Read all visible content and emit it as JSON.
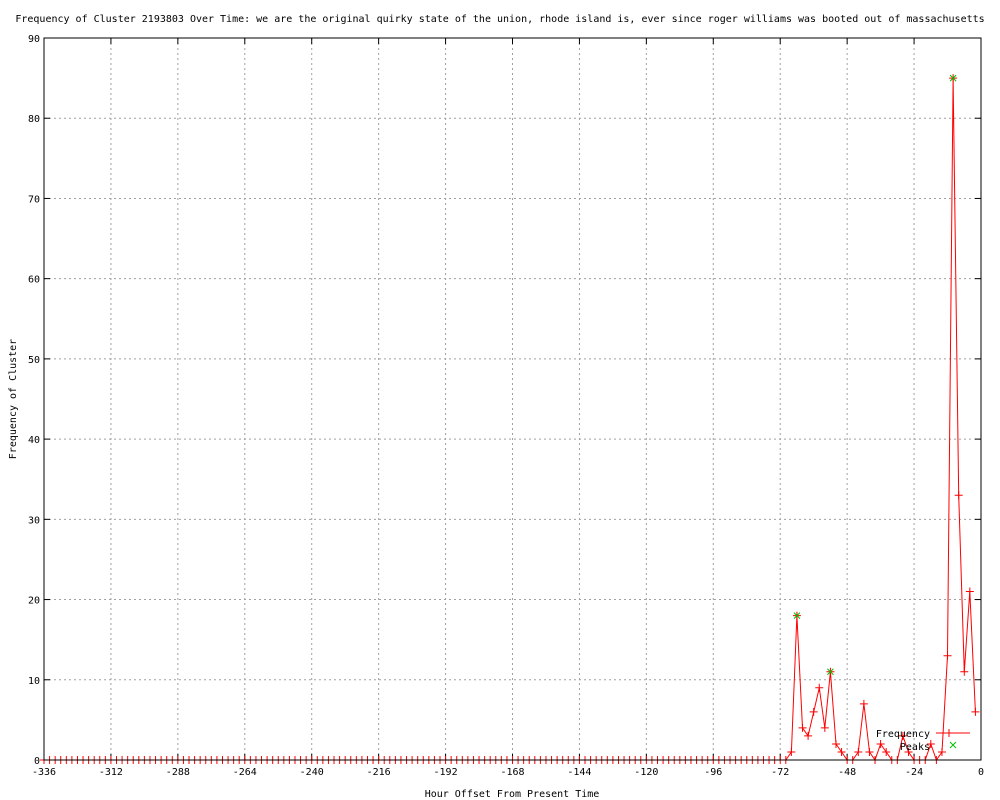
{
  "chart_data": {
    "type": "line",
    "title": "Frequency of Cluster 2193803 Over Time: we are the original quirky state of the union, rhode island is, ever since roger williams was booted out of massachusetts",
    "xlabel": "Hour Offset From Present Time",
    "ylabel": "Frequency of Cluster",
    "xlim": [
      -336,
      0
    ],
    "ylim": [
      0,
      90
    ],
    "xticks": [
      -336,
      -312,
      -288,
      -264,
      -240,
      -216,
      -192,
      -168,
      -144,
      -120,
      -96,
      -72,
      -48,
      -24,
      0
    ],
    "yticks": [
      0,
      10,
      20,
      30,
      40,
      50,
      60,
      70,
      80,
      90
    ],
    "grid": true,
    "legend_position": "bottom-right",
    "series": [
      {
        "name": "Frequency",
        "color": "#ff0000",
        "marker": "plus",
        "x": [
          -336,
          -334,
          -332,
          -330,
          -328,
          -326,
          -324,
          -322,
          -320,
          -318,
          -316,
          -314,
          -312,
          -310,
          -308,
          -306,
          -304,
          -302,
          -300,
          -298,
          -296,
          -294,
          -292,
          -290,
          -288,
          -286,
          -284,
          -282,
          -280,
          -278,
          -276,
          -274,
          -272,
          -270,
          -268,
          -266,
          -264,
          -262,
          -260,
          -258,
          -256,
          -254,
          -252,
          -250,
          -248,
          -246,
          -244,
          -242,
          -240,
          -238,
          -236,
          -234,
          -232,
          -230,
          -228,
          -226,
          -224,
          -222,
          -220,
          -218,
          -216,
          -214,
          -212,
          -210,
          -208,
          -206,
          -204,
          -202,
          -200,
          -198,
          -196,
          -194,
          -192,
          -190,
          -188,
          -186,
          -184,
          -182,
          -180,
          -178,
          -176,
          -174,
          -172,
          -170,
          -168,
          -166,
          -164,
          -162,
          -160,
          -158,
          -156,
          -154,
          -152,
          -150,
          -148,
          -146,
          -144,
          -142,
          -140,
          -138,
          -136,
          -134,
          -132,
          -130,
          -128,
          -126,
          -124,
          -122,
          -120,
          -118,
          -116,
          -114,
          -112,
          -110,
          -108,
          -106,
          -104,
          -102,
          -100,
          -98,
          -96,
          -94,
          -92,
          -90,
          -88,
          -86,
          -84,
          -82,
          -80,
          -78,
          -76,
          -74,
          -72,
          -70,
          -68,
          -66,
          -64,
          -62,
          -60,
          -58,
          -56,
          -54,
          -52,
          -50,
          -48,
          -46,
          -44,
          -42,
          -40,
          -38,
          -36,
          -34,
          -32,
          -30,
          -28,
          -26,
          -24,
          -22,
          -20,
          -18,
          -16,
          -14,
          -12,
          -10,
          -8,
          -6,
          -4,
          -2
        ],
        "y": [
          0,
          0,
          0,
          0,
          0,
          0,
          0,
          0,
          0,
          0,
          0,
          0,
          0,
          0,
          0,
          0,
          0,
          0,
          0,
          0,
          0,
          0,
          0,
          0,
          0,
          0,
          0,
          0,
          0,
          0,
          0,
          0,
          0,
          0,
          0,
          0,
          0,
          0,
          0,
          0,
          0,
          0,
          0,
          0,
          0,
          0,
          0,
          0,
          0,
          0,
          0,
          0,
          0,
          0,
          0,
          0,
          0,
          0,
          0,
          0,
          0,
          0,
          0,
          0,
          0,
          0,
          0,
          0,
          0,
          0,
          0,
          0,
          0,
          0,
          0,
          0,
          0,
          0,
          0,
          0,
          0,
          0,
          0,
          0,
          0,
          0,
          0,
          0,
          0,
          0,
          0,
          0,
          0,
          0,
          0,
          0,
          0,
          0,
          0,
          0,
          0,
          0,
          0,
          0,
          0,
          0,
          0,
          0,
          0,
          0,
          0,
          0,
          0,
          0,
          0,
          0,
          0,
          0,
          0,
          0,
          0,
          0,
          0,
          0,
          0,
          0,
          0,
          0,
          0,
          0,
          0,
          0,
          0,
          0,
          1,
          18,
          4,
          3,
          6,
          9,
          4,
          11,
          2,
          1,
          0,
          0,
          1,
          7,
          1,
          0,
          2,
          1,
          0,
          0,
          3,
          1,
          0,
          0,
          0,
          2,
          0,
          1,
          13,
          85,
          33,
          11,
          21,
          6
        ]
      },
      {
        "name": "Peaks",
        "color": "#00c000",
        "marker": "x",
        "x": [
          -66,
          -54,
          -10
        ],
        "y": [
          18,
          11,
          85
        ]
      }
    ]
  }
}
